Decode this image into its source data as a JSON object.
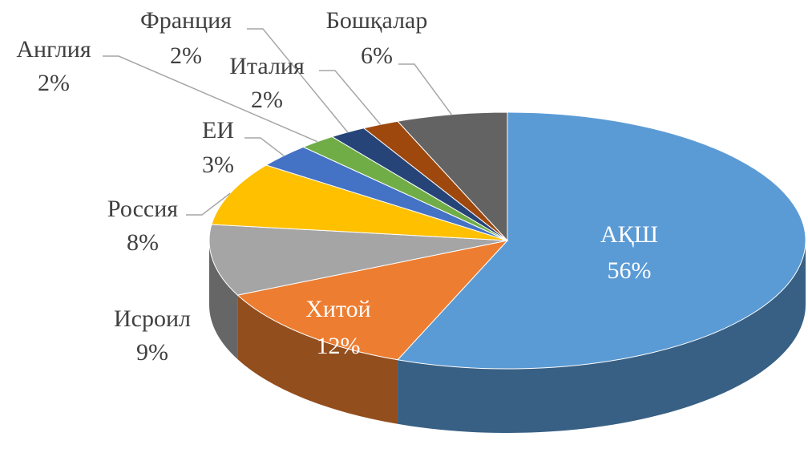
{
  "chart_data": {
    "type": "pie3d",
    "categories": [
      "АҚШ",
      "Хитой",
      "Исроил",
      "Россия",
      "ЕИ",
      "Англия",
      "Франция",
      "Италия",
      "Бошқалар"
    ],
    "values": [
      56,
      12,
      9,
      8,
      3,
      2,
      2,
      2,
      6
    ],
    "value_labels": [
      "56%",
      "12%",
      "9%",
      "8%",
      "3%",
      "2%",
      "2%",
      "2%",
      "6%"
    ],
    "colors": [
      "#5b9bd5",
      "#ed7d31",
      "#a5a5a5",
      "#ffc000",
      "#4472c4",
      "#70ad47",
      "#264478",
      "#9e480e",
      "#636363"
    ]
  }
}
